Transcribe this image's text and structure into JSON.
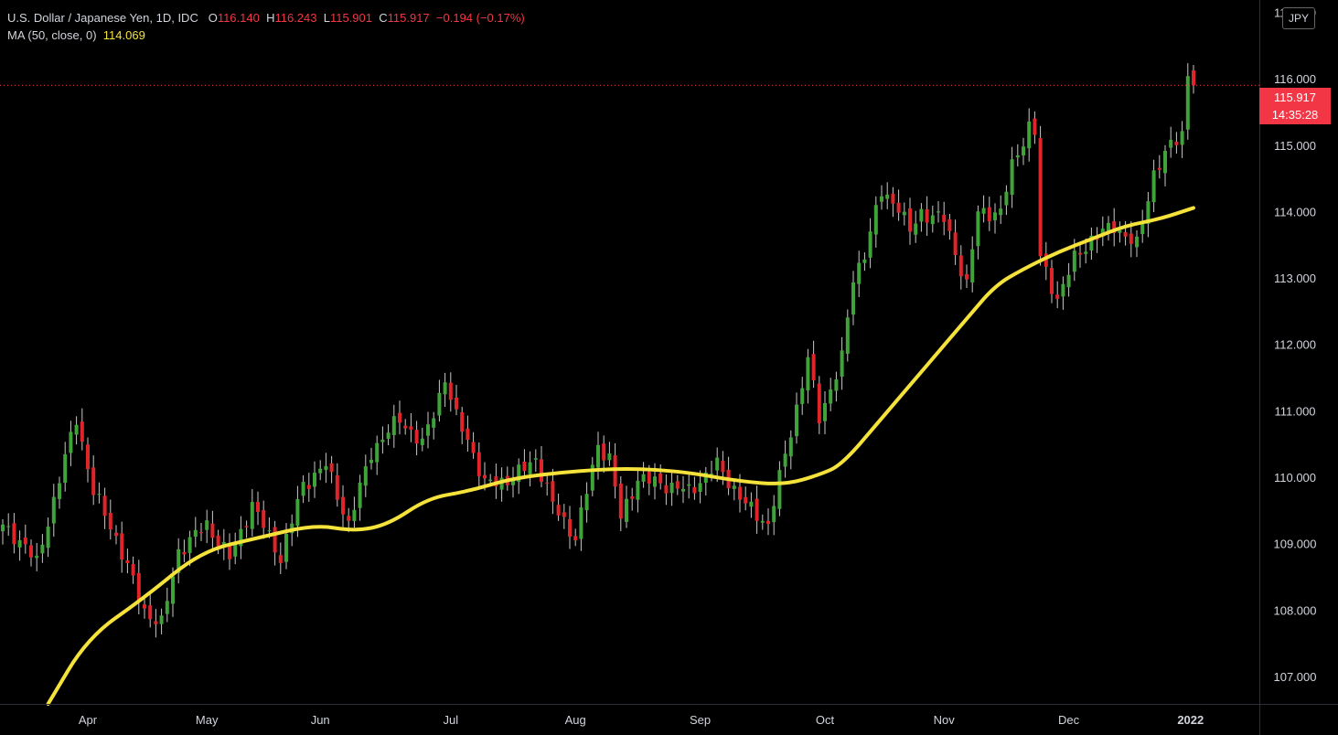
{
  "legend": {
    "symbol": "U.S. Dollar / Japanese Yen, 1D, IDC",
    "o_label": "O",
    "o_value": "116.140",
    "h_label": "H",
    "h_value": "116.243",
    "l_label": "L",
    "l_value": "115.901",
    "c_label": "C",
    "c_value": "115.917",
    "change": "−0.194 (−0.17%)",
    "ma_label": "MA (50, close, 0)",
    "ma_value": "114.069"
  },
  "currency_button": "JPY",
  "last_price": {
    "price": "115.917",
    "countdown": "14:35:28"
  },
  "colors": {
    "up": "#3fa33a",
    "down": "#e0252a",
    "ma": "#f5e23b",
    "background": "#000000",
    "axis_text": "#d1d4dc",
    "grid": "#2a2e39"
  },
  "chart_data": {
    "type": "candlestick",
    "title": "U.S. Dollar / Japanese Yen, 1D, IDC",
    "ylim": [
      106.6,
      117.2
    ],
    "y_ticks": [
      "117.000",
      "116.000",
      "115.000",
      "114.000",
      "113.000",
      "112.000",
      "111.000",
      "110.000",
      "109.000",
      "108.000",
      "107.000"
    ],
    "x_ticks": [
      {
        "label": "Apr",
        "index": 15
      },
      {
        "label": "May",
        "index": 36
      },
      {
        "label": "Jun",
        "index": 56
      },
      {
        "label": "Jul",
        "index": 79
      },
      {
        "label": "Aug",
        "index": 101
      },
      {
        "label": "Sep",
        "index": 123
      },
      {
        "label": "Oct",
        "index": 145
      },
      {
        "label": "Nov",
        "index": 166
      },
      {
        "label": "Dec",
        "index": 188
      },
      {
        "label": "2022",
        "index": 209
      }
    ],
    "keyframes": [
      [
        0,
        109.25
      ],
      [
        4,
        109.0
      ],
      [
        6,
        108.7
      ],
      [
        10,
        110.0
      ],
      [
        13,
        110.9
      ],
      [
        16,
        109.8
      ],
      [
        20,
        109.1
      ],
      [
        25,
        108.0
      ],
      [
        28,
        107.8
      ],
      [
        31,
        108.9
      ],
      [
        36,
        109.3
      ],
      [
        40,
        108.8
      ],
      [
        44,
        109.6
      ],
      [
        49,
        108.8
      ],
      [
        53,
        109.9
      ],
      [
        57,
        110.2
      ],
      [
        61,
        109.3
      ],
      [
        65,
        110.4
      ],
      [
        70,
        110.9
      ],
      [
        74,
        110.5
      ],
      [
        78,
        111.5
      ],
      [
        80,
        110.9
      ],
      [
        82,
        110.6
      ],
      [
        85,
        109.9
      ],
      [
        90,
        110.0
      ],
      [
        94,
        110.3
      ],
      [
        97,
        109.6
      ],
      [
        101,
        109.1
      ],
      [
        105,
        110.5
      ],
      [
        107,
        110.3
      ],
      [
        109,
        109.4
      ],
      [
        112,
        110.0
      ],
      [
        117,
        109.9
      ],
      [
        121,
        109.8
      ],
      [
        126,
        110.2
      ],
      [
        131,
        109.6
      ],
      [
        135,
        109.3
      ],
      [
        139,
        110.7
      ],
      [
        142,
        111.8
      ],
      [
        144,
        110.9
      ],
      [
        148,
        111.8
      ],
      [
        150,
        113.0
      ],
      [
        152,
        113.4
      ],
      [
        155,
        114.3
      ],
      [
        158,
        114.1
      ],
      [
        160,
        113.7
      ],
      [
        162,
        114.0
      ],
      [
        166,
        113.9
      ],
      [
        170,
        112.9
      ],
      [
        172,
        114.0
      ],
      [
        176,
        114.0
      ],
      [
        178,
        114.7
      ],
      [
        181,
        115.3
      ],
      [
        182,
        115.2
      ],
      [
        183,
        113.3
      ],
      [
        186,
        112.7
      ],
      [
        189,
        113.3
      ],
      [
        192,
        113.6
      ],
      [
        196,
        113.8
      ],
      [
        200,
        113.5
      ],
      [
        203,
        114.6
      ],
      [
        206,
        115.0
      ],
      [
        208,
        115.2
      ],
      [
        209,
        116.1
      ],
      [
        210,
        115.917
      ]
    ],
    "moving_average": {
      "name": "MA (50, close, 0)",
      "points": [
        [
          8,
          106.6
        ],
        [
          15,
          107.6
        ],
        [
          25,
          108.2
        ],
        [
          35,
          108.9
        ],
        [
          45,
          109.1
        ],
        [
          55,
          109.3
        ],
        [
          62,
          109.2
        ],
        [
          68,
          109.3
        ],
        [
          75,
          109.7
        ],
        [
          82,
          109.8
        ],
        [
          90,
          110.0
        ],
        [
          100,
          110.1
        ],
        [
          110,
          110.15
        ],
        [
          120,
          110.1
        ],
        [
          130,
          109.95
        ],
        [
          138,
          109.9
        ],
        [
          144,
          110.05
        ],
        [
          148,
          110.2
        ],
        [
          155,
          110.9
        ],
        [
          162,
          111.6
        ],
        [
          170,
          112.4
        ],
        [
          175,
          112.9
        ],
        [
          180,
          113.15
        ],
        [
          186,
          113.4
        ],
        [
          192,
          113.6
        ],
        [
          198,
          113.8
        ],
        [
          204,
          113.9
        ],
        [
          210,
          114.069
        ]
      ]
    },
    "last_close": 115.917
  }
}
